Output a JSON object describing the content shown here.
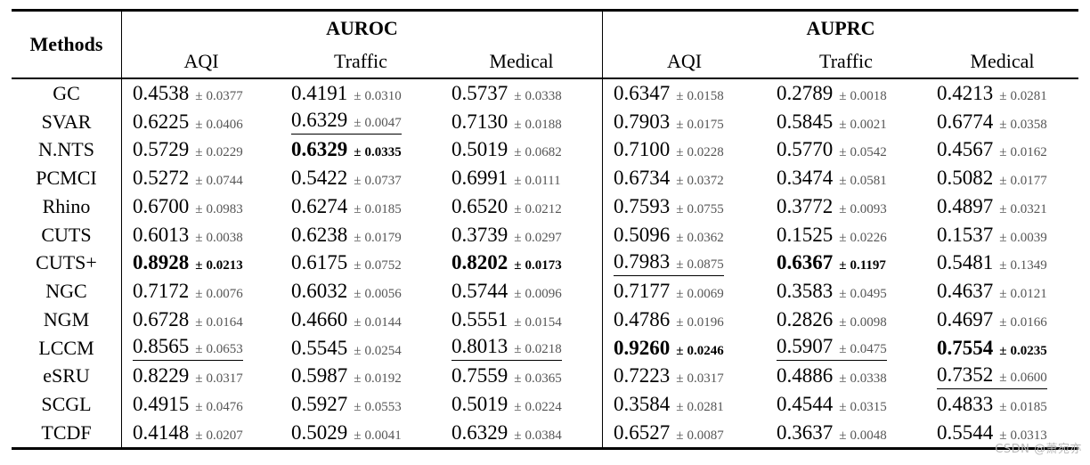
{
  "table": {
    "methods_header": "Methods",
    "groups": [
      {
        "label": "AUROC",
        "sub": [
          "AQI",
          "Traffic",
          "Medical"
        ]
      },
      {
        "label": "AUPRC",
        "sub": [
          "AQI",
          "Traffic",
          "Medical"
        ]
      }
    ],
    "rows": [
      {
        "method": "GC",
        "cells": [
          {
            "mean": "0.4538",
            "std": "0.0377"
          },
          {
            "mean": "0.4191",
            "std": "0.0310"
          },
          {
            "mean": "0.5737",
            "std": "0.0338"
          },
          {
            "mean": "0.6347",
            "std": "0.0158"
          },
          {
            "mean": "0.2789",
            "std": "0.0018"
          },
          {
            "mean": "0.4213",
            "std": "0.0281"
          }
        ]
      },
      {
        "method": "SVAR",
        "cells": [
          {
            "mean": "0.6225",
            "std": "0.0406"
          },
          {
            "mean": "0.6329",
            "std": "0.0047",
            "underline": true
          },
          {
            "mean": "0.7130",
            "std": "0.0188"
          },
          {
            "mean": "0.7903",
            "std": "0.0175"
          },
          {
            "mean": "0.5845",
            "std": "0.0021"
          },
          {
            "mean": "0.6774",
            "std": "0.0358"
          }
        ]
      },
      {
        "method": "N.NTS",
        "cells": [
          {
            "mean": "0.5729",
            "std": "0.0229"
          },
          {
            "mean": "0.6329",
            "std": "0.0335",
            "bold": true
          },
          {
            "mean": "0.5019",
            "std": "0.0682"
          },
          {
            "mean": "0.7100",
            "std": "0.0228"
          },
          {
            "mean": "0.5770",
            "std": "0.0542"
          },
          {
            "mean": "0.4567",
            "std": "0.0162"
          }
        ]
      },
      {
        "method": "PCMCI",
        "cells": [
          {
            "mean": "0.5272",
            "std": "0.0744"
          },
          {
            "mean": "0.5422",
            "std": "0.0737"
          },
          {
            "mean": "0.6991",
            "std": "0.0111"
          },
          {
            "mean": "0.6734",
            "std": "0.0372"
          },
          {
            "mean": "0.3474",
            "std": "0.0581"
          },
          {
            "mean": "0.5082",
            "std": "0.0177"
          }
        ]
      },
      {
        "method": "Rhino",
        "cells": [
          {
            "mean": "0.6700",
            "std": "0.0983"
          },
          {
            "mean": "0.6274",
            "std": "0.0185"
          },
          {
            "mean": "0.6520",
            "std": "0.0212"
          },
          {
            "mean": "0.7593",
            "std": "0.0755"
          },
          {
            "mean": "0.3772",
            "std": "0.0093"
          },
          {
            "mean": "0.4897",
            "std": "0.0321"
          }
        ]
      },
      {
        "method": "CUTS",
        "cells": [
          {
            "mean": "0.6013",
            "std": "0.0038"
          },
          {
            "mean": "0.6238",
            "std": "0.0179"
          },
          {
            "mean": "0.3739",
            "std": "0.0297"
          },
          {
            "mean": "0.5096",
            "std": "0.0362"
          },
          {
            "mean": "0.1525",
            "std": "0.0226"
          },
          {
            "mean": "0.1537",
            "std": "0.0039"
          }
        ]
      },
      {
        "method": "CUTS+",
        "cells": [
          {
            "mean": "0.8928",
            "std": "0.0213",
            "bold": true
          },
          {
            "mean": "0.6175",
            "std": "0.0752"
          },
          {
            "mean": "0.8202",
            "std": "0.0173",
            "bold": true
          },
          {
            "mean": "0.7983",
            "std": "0.0875",
            "underline": true
          },
          {
            "mean": "0.6367",
            "std": "0.1197",
            "bold": true
          },
          {
            "mean": "0.5481",
            "std": "0.1349"
          }
        ]
      },
      {
        "method": "NGC",
        "cells": [
          {
            "mean": "0.7172",
            "std": "0.0076"
          },
          {
            "mean": "0.6032",
            "std": "0.0056"
          },
          {
            "mean": "0.5744",
            "std": "0.0096"
          },
          {
            "mean": "0.7177",
            "std": "0.0069"
          },
          {
            "mean": "0.3583",
            "std": "0.0495"
          },
          {
            "mean": "0.4637",
            "std": "0.0121"
          }
        ]
      },
      {
        "method": "NGM",
        "cells": [
          {
            "mean": "0.6728",
            "std": "0.0164"
          },
          {
            "mean": "0.4660",
            "std": "0.0144"
          },
          {
            "mean": "0.5551",
            "std": "0.0154"
          },
          {
            "mean": "0.4786",
            "std": "0.0196"
          },
          {
            "mean": "0.2826",
            "std": "0.0098"
          },
          {
            "mean": "0.4697",
            "std": "0.0166"
          }
        ]
      },
      {
        "method": "LCCM",
        "cells": [
          {
            "mean": "0.8565",
            "std": "0.0653",
            "underline": true
          },
          {
            "mean": "0.5545",
            "std": "0.0254"
          },
          {
            "mean": "0.8013",
            "std": "0.0218",
            "underline": true
          },
          {
            "mean": "0.9260",
            "std": "0.0246",
            "bold": true
          },
          {
            "mean": "0.5907",
            "std": "0.0475",
            "underline": true
          },
          {
            "mean": "0.7554",
            "std": "0.0235",
            "bold": true
          }
        ]
      },
      {
        "method": "eSRU",
        "cells": [
          {
            "mean": "0.8229",
            "std": "0.0317"
          },
          {
            "mean": "0.5987",
            "std": "0.0192"
          },
          {
            "mean": "0.7559",
            "std": "0.0365"
          },
          {
            "mean": "0.7223",
            "std": "0.0317"
          },
          {
            "mean": "0.4886",
            "std": "0.0338"
          },
          {
            "mean": "0.7352",
            "std": "0.0600",
            "underline": true
          }
        ]
      },
      {
        "method": "SCGL",
        "cells": [
          {
            "mean": "0.4915",
            "std": "0.0476"
          },
          {
            "mean": "0.5927",
            "std": "0.0553"
          },
          {
            "mean": "0.5019",
            "std": "0.0224"
          },
          {
            "mean": "0.3584",
            "std": "0.0281"
          },
          {
            "mean": "0.4544",
            "std": "0.0315"
          },
          {
            "mean": "0.4833",
            "std": "0.0185"
          }
        ]
      },
      {
        "method": "TCDF",
        "cells": [
          {
            "mean": "0.4148",
            "std": "0.0207"
          },
          {
            "mean": "0.5029",
            "std": "0.0041"
          },
          {
            "mean": "0.6329",
            "std": "0.0384"
          },
          {
            "mean": "0.6527",
            "std": "0.0087"
          },
          {
            "mean": "0.3637",
            "std": "0.0048"
          },
          {
            "mean": "0.5544",
            "std": "0.0313"
          }
        ]
      }
    ],
    "plus_minus_symbol": "±"
  },
  "watermark": "CSDN @萧宛亦",
  "colors": {
    "rule": "#000000",
    "std_text": "#555555",
    "watermark": "#b9b9b9",
    "background": "#ffffff"
  }
}
